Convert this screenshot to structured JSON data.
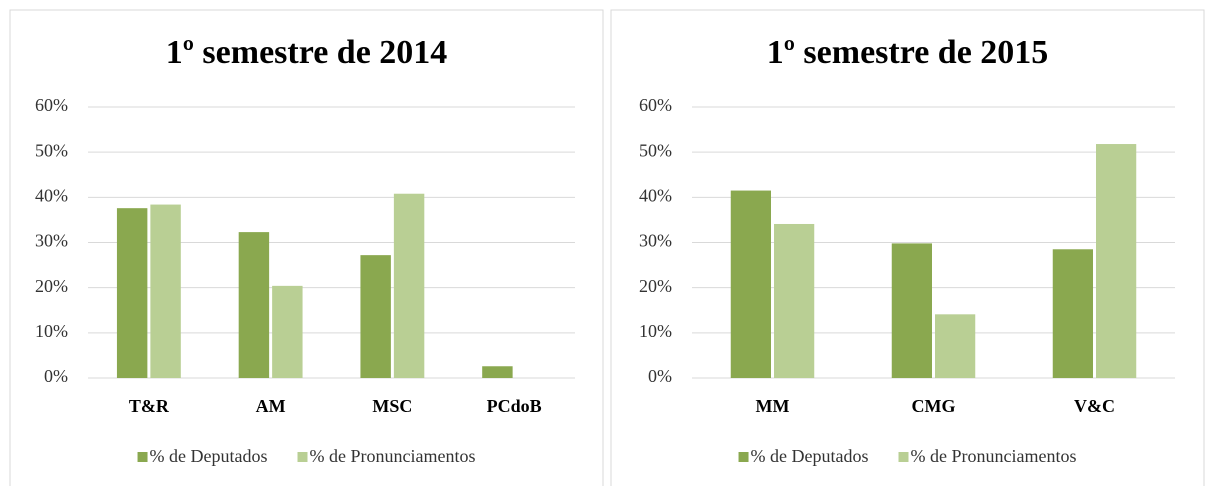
{
  "chart_data": [
    {
      "type": "bar",
      "title": "1º semestre de 2014",
      "categories": [
        "T&R",
        "AM",
        "MSC",
        "PCdoB"
      ],
      "series": [
        {
          "name": "% de Deputados",
          "color": "#8aa84f",
          "values": [
            37.6,
            32.3,
            27.2,
            2.6
          ]
        },
        {
          "name": "% de Pronunciamentos",
          "color": "#b9cf94",
          "values": [
            38.4,
            20.4,
            40.8,
            0
          ]
        }
      ],
      "ylim": [
        0,
        60
      ],
      "yticks": [
        {
          "value": 0,
          "label": "0%"
        },
        {
          "value": 10,
          "label": "10%"
        },
        {
          "value": 20,
          "label": "20%"
        },
        {
          "value": 30,
          "label": "30%"
        },
        {
          "value": 40,
          "label": "40%"
        },
        {
          "value": 50,
          "label": "50%"
        },
        {
          "value": 60,
          "label": "60%"
        }
      ],
      "grid": true,
      "legend": "bottom"
    },
    {
      "type": "bar",
      "title": "1º semestre de 2015",
      "categories": [
        "MM",
        "CMG",
        "V&C"
      ],
      "series": [
        {
          "name": "% de Deputados",
          "color": "#8aa84f",
          "values": [
            41.5,
            29.8,
            28.5
          ]
        },
        {
          "name": "% de Pronunciamentos",
          "color": "#b9cf94",
          "values": [
            34.1,
            14.1,
            51.8
          ]
        }
      ],
      "ylim": [
        0,
        60
      ],
      "yticks": [
        {
          "value": 0,
          "label": "0%"
        },
        {
          "value": 10,
          "label": "10%"
        },
        {
          "value": 20,
          "label": "20%"
        },
        {
          "value": 30,
          "label": "30%"
        },
        {
          "value": 40,
          "label": "40%"
        },
        {
          "value": 50,
          "label": "50%"
        },
        {
          "value": 60,
          "label": "60%"
        }
      ],
      "grid": true,
      "legend": "bottom"
    }
  ]
}
